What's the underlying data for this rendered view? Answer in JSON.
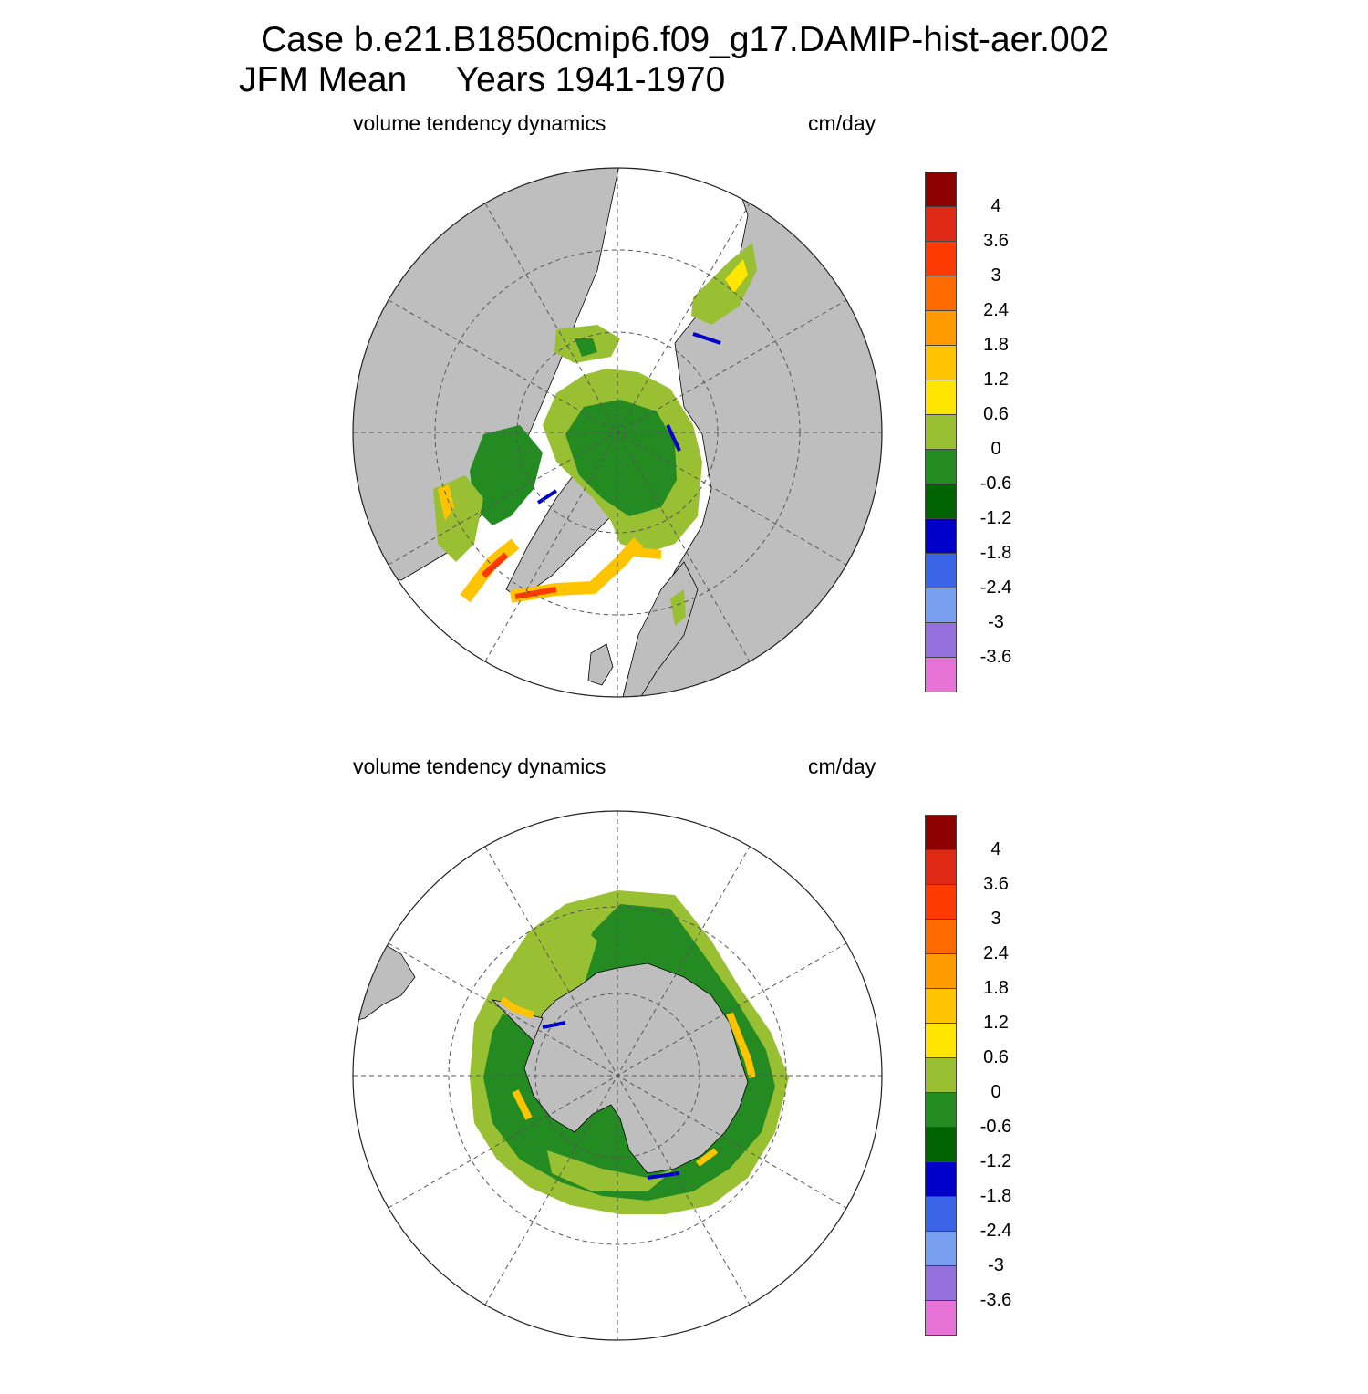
{
  "header": {
    "line1": "Case b.e21.B1850cmip6.f09_g17.DAMIP-hist-aer.002",
    "line2": "JFM Mean     Years 1941-1970"
  },
  "panels": [
    {
      "hemisphere": "north",
      "variable_label": "volume tendency dynamics",
      "units_label": "cm/day"
    },
    {
      "hemisphere": "south",
      "variable_label": "volume tendency dynamics",
      "units_label": "cm/day"
    }
  ],
  "colorbar": {
    "colors": [
      "#8b0000",
      "#de2a14",
      "#ff3a00",
      "#ff6a00",
      "#ff9a00",
      "#ffc400",
      "#ffe600",
      "#99bf33",
      "#238b22",
      "#006400",
      "#0000c8",
      "#3c64e6",
      "#789ef0",
      "#9470dc",
      "#e873d6"
    ],
    "labels": [
      "4",
      "3.6",
      "3",
      "2.4",
      "1.8",
      "1.2",
      "0.6",
      "0",
      "-0.6",
      "-1.2",
      "-1.8",
      "-2.4",
      "-3",
      "-3.6"
    ]
  },
  "map_colors": {
    "land": "#bebebe",
    "ice_free_ocean": "#ffffff"
  }
}
